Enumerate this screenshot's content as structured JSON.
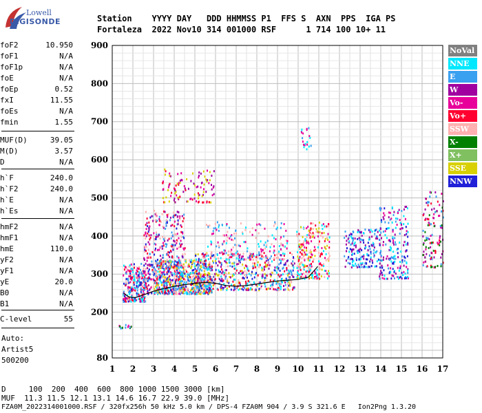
{
  "logo": {
    "line1": "Lowell",
    "line2": "DIGISONDE"
  },
  "header": {
    "line1": "Station    YYYY DAY   DDD HHMMSS P1  FFS S  AXN  PPS  IGA PS",
    "line2": "Fortaleza  2022 Nov10 314 001000 RSF      1 714 100 10+ 11"
  },
  "params_group1": [
    {
      "k": "foF2",
      "v": "10.950"
    },
    {
      "k": "foF1",
      "v": "N/A"
    },
    {
      "k": "foF1p",
      "v": "N/A"
    },
    {
      "k": "foE",
      "v": "N/A"
    },
    {
      "k": "foEp",
      "v": "0.52"
    },
    {
      "k": "fxI",
      "v": "11.55"
    },
    {
      "k": "foEs",
      "v": "N/A"
    },
    {
      "k": "fmin",
      "v": "1.55"
    }
  ],
  "params_group2": [
    {
      "k": "MUF(D)",
      "v": "39.05"
    },
    {
      "k": "M(D)",
      "v": "3.57"
    },
    {
      "k": "D",
      "v": "N/A"
    }
  ],
  "params_group3": [
    {
      "k": "h`F",
      "v": "240.0"
    },
    {
      "k": "h`F2",
      "v": "240.0"
    },
    {
      "k": "h`E",
      "v": "N/A"
    },
    {
      "k": "h`Es",
      "v": "N/A"
    }
  ],
  "params_group4": [
    {
      "k": "hmF2",
      "v": "N/A"
    },
    {
      "k": "hmF1",
      "v": "N/A"
    },
    {
      "k": "hmE",
      "v": "110.0"
    },
    {
      "k": "yF2",
      "v": "N/A"
    },
    {
      "k": "yF1",
      "v": "N/A"
    },
    {
      "k": "yE",
      "v": "20.0"
    },
    {
      "k": "B0",
      "v": "N/A"
    },
    {
      "k": "B1",
      "v": "N/A"
    }
  ],
  "params_group5": [
    {
      "k": "C-level",
      "v": "55"
    }
  ],
  "auto": {
    "line1": "Auto:",
    "line2": "Artist5",
    "line3": "500200"
  },
  "footer": {
    "line1": "D     100  200  400  600  800 1000 1500 3000 [km]",
    "line2": "MUF  11.3 11.5 12.1 13.1 14.6 16.7 22.9 39.0 [MHz]",
    "line3": "FZA0M_2022314001000.RSF / 320fx256h 50 kHz 5.0 km / DPS-4 FZA0M 904 / 3.9 S 321.6 E   Ion2Png 1.3.20"
  },
  "legend": [
    {
      "label": "NoVal",
      "color": "#808080"
    },
    {
      "label": "NNE",
      "color": "#00e8ff"
    },
    {
      "label": "E",
      "color": "#3aa0f0"
    },
    {
      "label": "W",
      "color": "#a000a0"
    },
    {
      "label": "Vo-",
      "color": "#e8009a"
    },
    {
      "label": "Vo+",
      "color": "#ff0030"
    },
    {
      "label": "SSW",
      "color": "#ffb0b0"
    },
    {
      "label": "X-",
      "color": "#008000"
    },
    {
      "label": "X+",
      "color": "#80c060"
    },
    {
      "label": "SSE",
      "color": "#d8d000"
    },
    {
      "label": "NNW",
      "color": "#2020d8"
    }
  ],
  "chart_data": {
    "type": "scatter",
    "xlim": [
      1,
      17
    ],
    "ylim": [
      80,
      900
    ],
    "xticks": [
      1,
      2,
      3,
      4,
      5,
      6,
      7,
      8,
      9,
      10,
      11,
      12,
      13,
      14,
      15,
      16,
      17
    ],
    "yticks": [
      80,
      200,
      300,
      400,
      500,
      600,
      700,
      800,
      900
    ],
    "grid": true,
    "legend_position": "right",
    "trace": {
      "x": [
        1.55,
        1.8,
        2.1,
        2.5,
        3.0,
        3.5,
        4.0,
        4.5,
        5.0,
        5.5,
        6.0,
        6.5,
        7.0,
        7.5,
        8.0,
        8.5,
        9.0,
        9.5,
        10.0,
        10.5,
        10.95
      ],
      "y": [
        250,
        240,
        238,
        245,
        255,
        262,
        268,
        272,
        276,
        278,
        276,
        270,
        268,
        270,
        274,
        278,
        282,
        284,
        286,
        292,
        320
      ]
    },
    "clusters": [
      {
        "x": [
          1.5,
          2.6
        ],
        "y": [
          230,
          330
        ],
        "n": 260,
        "colors": [
          "#ff0030",
          "#e8009a",
          "#3aa0f0",
          "#00e8ff",
          "#ffb0b0",
          "#2020d8"
        ]
      },
      {
        "x": [
          2.5,
          4.5
        ],
        "y": [
          250,
          470
        ],
        "n": 420,
        "colors": [
          "#e8009a",
          "#a000a0",
          "#ff0030",
          "#3aa0f0",
          "#ffb0b0",
          "#2020d8"
        ]
      },
      {
        "x": [
          3.0,
          5.8
        ],
        "y": [
          250,
          340
        ],
        "n": 620,
        "colors": [
          "#3aa0f0",
          "#00e8ff",
          "#ff0030",
          "#d8d000",
          "#2020d8",
          "#ffb0b0"
        ]
      },
      {
        "x": [
          3.4,
          5.9
        ],
        "y": [
          490,
          580
        ],
        "n": 110,
        "colors": [
          "#d8d000",
          "#ff0030",
          "#e8009a",
          "#a000a0"
        ]
      },
      {
        "x": [
          5.0,
          9.8
        ],
        "y": [
          260,
          360
        ],
        "n": 560,
        "colors": [
          "#3aa0f0",
          "#00e8ff",
          "#ff0030",
          "#d8d000",
          "#2020d8",
          "#ffb0b0",
          "#a000a0"
        ]
      },
      {
        "x": [
          5.5,
          9.5
        ],
        "y": [
          340,
          440
        ],
        "n": 180,
        "colors": [
          "#ffb0b0",
          "#00e8ff",
          "#3aa0f0",
          "#e8009a"
        ]
      },
      {
        "x": [
          9.9,
          11.5
        ],
        "y": [
          290,
          440
        ],
        "n": 260,
        "colors": [
          "#ff0030",
          "#ffb0b0",
          "#00e8ff",
          "#d8d000",
          "#e8009a"
        ]
      },
      {
        "x": [
          10.1,
          10.6
        ],
        "y": [
          630,
          690
        ],
        "n": 20,
        "colors": [
          "#3aa0f0",
          "#00e8ff",
          "#e8009a"
        ]
      },
      {
        "x": [
          12.2,
          14.0
        ],
        "y": [
          320,
          420
        ],
        "n": 180,
        "colors": [
          "#00e8ff",
          "#2020d8",
          "#3aa0f0",
          "#a000a0"
        ]
      },
      {
        "x": [
          13.9,
          15.3
        ],
        "y": [
          290,
          480
        ],
        "n": 200,
        "colors": [
          "#2020d8",
          "#3aa0f0",
          "#00e8ff",
          "#a000a0",
          "#e8009a"
        ]
      },
      {
        "x": [
          16.0,
          17.0
        ],
        "y": [
          320,
          520
        ],
        "n": 120,
        "colors": [
          "#a000a0",
          "#e8009a",
          "#3aa0f0",
          "#008000",
          "#ff0030"
        ]
      },
      {
        "x": [
          1.3,
          1.9
        ],
        "y": [
          160,
          170
        ],
        "n": 14,
        "colors": [
          "#3aa0f0",
          "#008000",
          "#e8009a"
        ]
      }
    ]
  }
}
